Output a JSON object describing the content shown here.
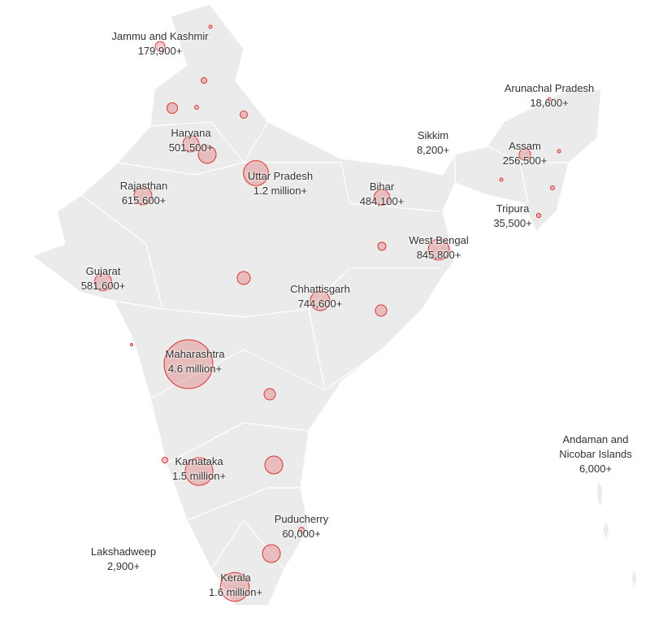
{
  "regions": [
    {
      "name": "Jammu and Kashmir",
      "label": "179,900+",
      "value": 179900
    },
    {
      "name": "Haryana",
      "label": "501,500+",
      "value": 501500
    },
    {
      "name": "Uttar Pradesh",
      "label": "1.2 million+",
      "value": 1200000
    },
    {
      "name": "Rajasthan",
      "label": "615,600+",
      "value": 615600
    },
    {
      "name": "Bihar",
      "label": "484,100+",
      "value": 484100
    },
    {
      "name": "Gujarat",
      "label": "581,600+",
      "value": 581600
    },
    {
      "name": "West Bengal",
      "label": "845,800+",
      "value": 845800
    },
    {
      "name": "Chhattisgarh",
      "label": "744,600+",
      "value": 744600
    },
    {
      "name": "Maharashtra",
      "label": "4.6 million+",
      "value": 4600000
    },
    {
      "name": "Karnataka",
      "label": "1.5 million+",
      "value": 1500000
    },
    {
      "name": "Puducherry",
      "label": "60,000+",
      "value": 60000
    },
    {
      "name": "Kerala",
      "label": "1.6 million+",
      "value": 1600000
    },
    {
      "name": "Lakshadweep",
      "label": "2,900+",
      "value": 2900
    },
    {
      "name": "Andaman and Nicobar Islands",
      "label": "6,000+",
      "value": 6000
    },
    {
      "name": "Arunachal Pradesh",
      "label": "18,600+",
      "value": 18600
    },
    {
      "name": "Sikkim",
      "label": "8,200+",
      "value": 8200
    },
    {
      "name": "Assam",
      "label": "256,500+",
      "value": 256500
    },
    {
      "name": "Tripura",
      "label": "35,500+",
      "value": 35500
    }
  ]
}
